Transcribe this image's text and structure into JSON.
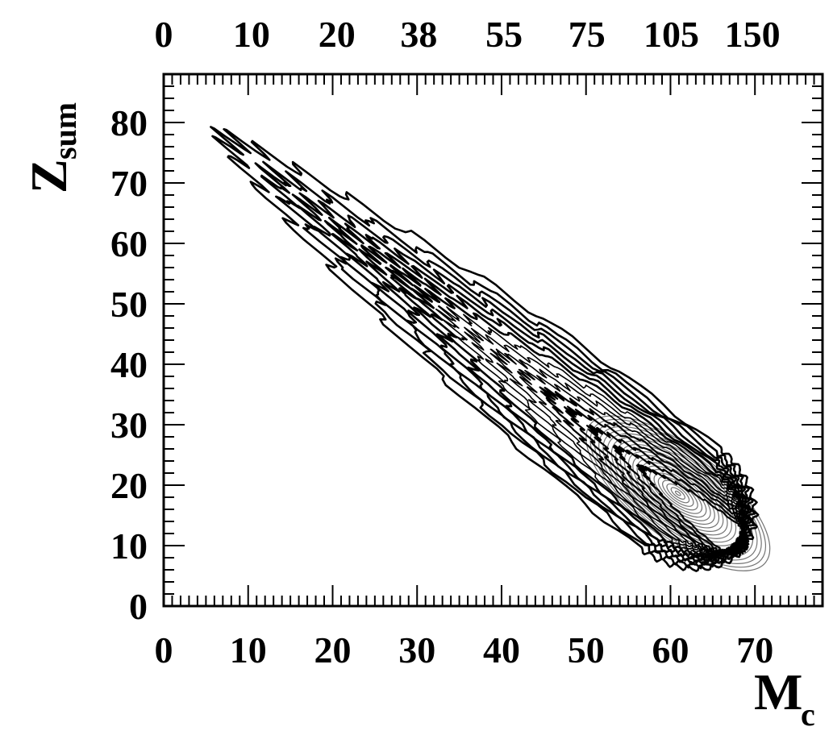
{
  "chart_data": {
    "type": "contour",
    "title": "",
    "xlabel": {
      "main": "M",
      "sub": "c"
    },
    "ylabel": {
      "main": "Z",
      "sub": "sum"
    },
    "xlim": [
      0,
      78
    ],
    "ylim": [
      0,
      88
    ],
    "x_ticks": [
      "0",
      "10",
      "20",
      "30",
      "40",
      "50",
      "60",
      "70"
    ],
    "y_ticks": [
      "0",
      "10",
      "20",
      "30",
      "40",
      "50",
      "60",
      "70",
      "80"
    ],
    "top_axis_ticks": [
      {
        "label": "0",
        "at_x": 0
      },
      {
        "label": "10",
        "at_x": 10.4
      },
      {
        "label": "20",
        "at_x": 20.5
      },
      {
        "label": "38",
        "at_x": 30.2
      },
      {
        "label": "55",
        "at_x": 40.3
      },
      {
        "label": "75",
        "at_x": 50.1
      },
      {
        "label": "105",
        "at_x": 60.1
      },
      {
        "label": "150",
        "at_x": 69.7
      }
    ],
    "grid": false,
    "distribution": {
      "center": [
        61,
        18
      ],
      "axis_start": [
        12,
        72
      ],
      "outer_halfwidth": 7.5,
      "contour_levels": 16
    },
    "colors": {
      "line": "#000000",
      "background": "#ffffff"
    }
  }
}
